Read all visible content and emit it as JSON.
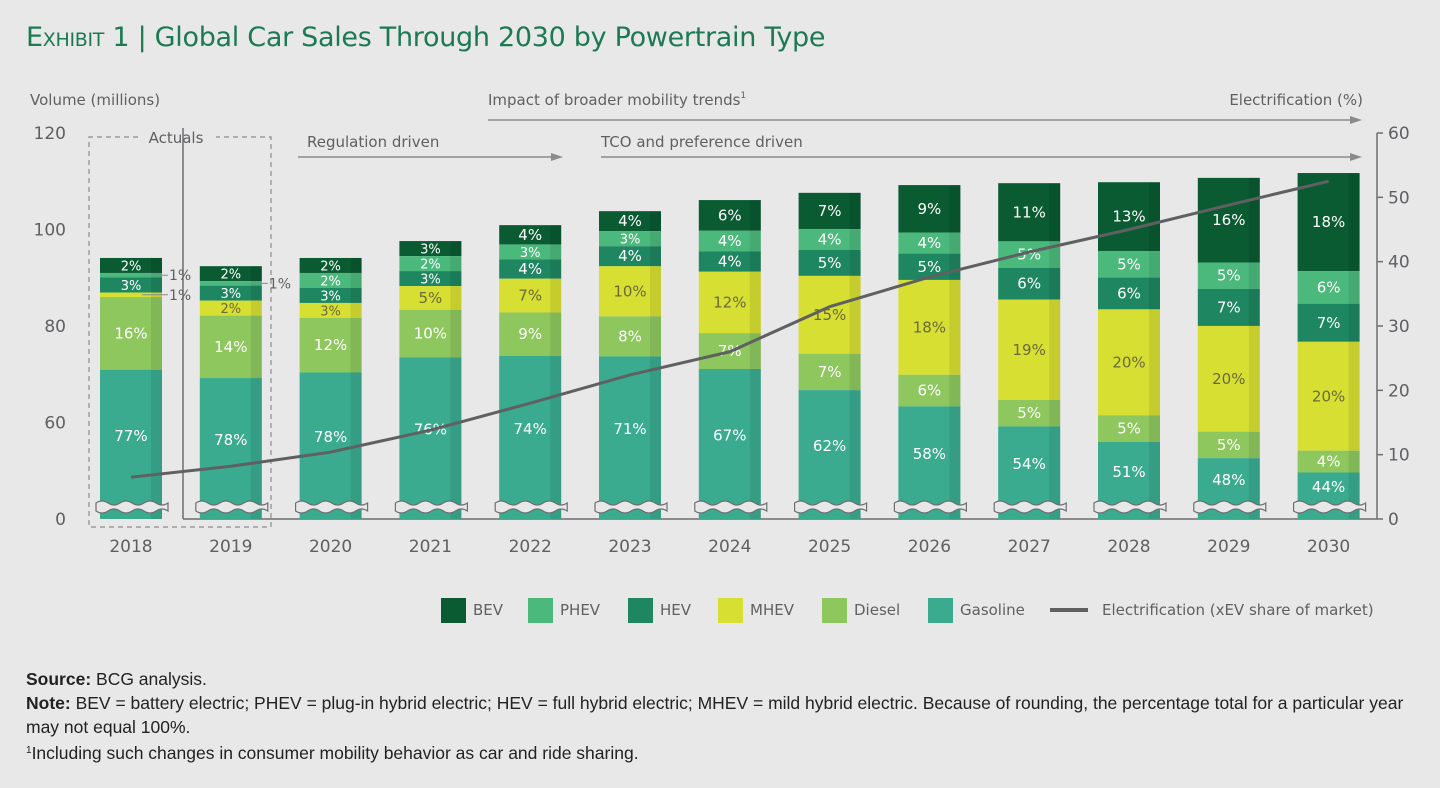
{
  "title": {
    "exhibit": "Exhibit 1",
    "separator": " | ",
    "text": "Global Car Sales Through 2030 by Powertrain Type"
  },
  "colors": {
    "BEV": "#0a5a32",
    "PHEV": "#4bb87c",
    "HEV": "#1e8660",
    "MHEV": "#d6df32",
    "Diesel": "#8dc75e",
    "Gasoline": "#3aab8f",
    "line": "#5f6062",
    "title": "#1c7a52"
  },
  "chart_data": {
    "type": "bar",
    "stacked": true,
    "axis_break": "left axis broken between 0 and 60; gasoline bars truncated",
    "categories": [
      "2018",
      "2019",
      "2020",
      "2021",
      "2022",
      "2023",
      "2024",
      "2025",
      "2026",
      "2027",
      "2028",
      "2029",
      "2030"
    ],
    "ylabel": "Volume (millions)",
    "y_ticks": [
      "0",
      "60",
      "80",
      "100",
      "120"
    ],
    "y2label": "Electrification (%)",
    "y2_ticks": [
      "0",
      "10",
      "20",
      "30",
      "40",
      "50",
      "60"
    ],
    "y2lim": [
      0,
      60
    ],
    "totals_millions": [
      94.1,
      92.4,
      94.1,
      97.6,
      100.9,
      103.8,
      106.1,
      107.6,
      109.2,
      109.6,
      109.8,
      110.7,
      111.7
    ],
    "series": [
      {
        "name": "Gasoline",
        "values": [
          77,
          78,
          78,
          76,
          74,
          71,
          67,
          62,
          58,
          54,
          51,
          48,
          44
        ]
      },
      {
        "name": "Diesel",
        "values": [
          16,
          14,
          12,
          10,
          9,
          8,
          7,
          7,
          6,
          5,
          5,
          5,
          4
        ]
      },
      {
        "name": "MHEV",
        "values": [
          1,
          2,
          3,
          5,
          7,
          10,
          12,
          15,
          18,
          19,
          20,
          20,
          20
        ]
      },
      {
        "name": "HEV",
        "values": [
          3,
          3,
          3,
          3,
          4,
          4,
          4,
          5,
          5,
          6,
          6,
          7,
          7
        ]
      },
      {
        "name": "PHEV",
        "values": [
          1,
          1,
          2,
          2,
          3,
          3,
          4,
          4,
          4,
          5,
          5,
          5,
          6
        ]
      },
      {
        "name": "BEV",
        "values": [
          2,
          2,
          2,
          3,
          4,
          4,
          6,
          7,
          9,
          11,
          13,
          16,
          18
        ]
      }
    ],
    "line": {
      "name": "Electrification (xEV share of market)",
      "axis": "right",
      "values": [
        6.5,
        8.2,
        10.4,
        13.8,
        18,
        22.4,
        26,
        33,
        37.6,
        41.5,
        45,
        48.8,
        52.5
      ]
    },
    "annotations": {
      "actuals": "Actuals",
      "mobility": "Impact of broader mobility trends",
      "mobility_sup": "1",
      "regulation": "Regulation driven",
      "tco": "TCO and preference driven"
    },
    "legend": [
      "BEV",
      "PHEV",
      "HEV",
      "MHEV",
      "Diesel",
      "Gasoline",
      "Electrification (xEV share of market)"
    ],
    "legend_position": "bottom-right"
  },
  "notes": {
    "source_label": "Source:",
    "source": " BCG analysis.",
    "note_label": "Note:",
    "note": " BEV = battery electric; PHEV = plug-in hybrid electric; HEV = full hybrid electric; MHEV = mild hybrid electric. Because of rounding, the percentage total for a particular year may not equal 100%.",
    "footnote_sup": "1",
    "footnote": "Including such changes in consumer mobility behavior as car and ride sharing."
  }
}
